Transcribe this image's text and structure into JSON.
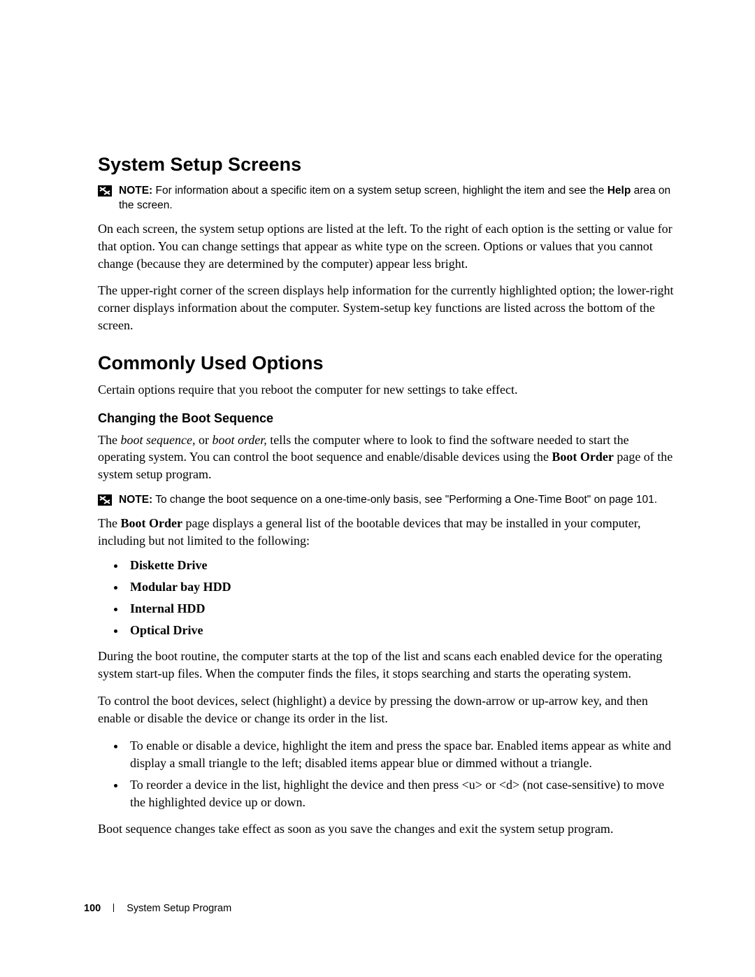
{
  "heading1": "System Setup Screens",
  "note1_html": "<b>NOTE:</b> For information about a specific item on a system setup screen, highlight the item and see the <b>Help</b> area on the screen.",
  "para1": "On each screen, the system setup options are listed at the left. To the right of each option is the setting or value for that option. You can change settings that appear as white type on the screen. Options or values that you cannot change (because they are determined by the computer) appear less bright.",
  "para2": "The upper-right corner of the screen displays help information for the currently highlighted option; the lower-right corner displays information about the computer. System-setup key functions are listed across the bottom of the screen.",
  "heading2": "Commonly Used Options",
  "para3": "Certain options require that you reboot the computer for new settings to take effect.",
  "heading3": "Changing the Boot Sequence",
  "para4_html": "The <span class=\"ital\">boot sequence,</span> or <span class=\"ital\">boot order,</span> tells the computer where to look to find the software needed to start the operating system. You can control the boot sequence and enable/disable devices using the <span class=\"bold\">Boot Order</span> page of the system setup program.",
  "note2_html": "<b>NOTE:</b> To change the boot sequence on a one-time-only basis, see \"Performing a One-Time Boot\" on page 101.",
  "para5_html": "The <span class=\"bold\">Boot Order</span> page displays a general list of the bootable devices that may be installed in your computer, including but not limited to the following:",
  "boot_devices": [
    "Diskette Drive",
    "Modular bay HDD",
    "Internal HDD",
    "Optical Drive"
  ],
  "para6": "During the boot routine, the computer starts at the top of the list and scans each enabled device for the operating system start-up files. When the computer finds the files, it stops searching and starts the operating system.",
  "para7": "To control the boot devices, select (highlight) a device by pressing the down-arrow or up-arrow key, and then enable or disable the device or change its order in the list.",
  "instructions": [
    "To enable or disable a device, highlight the item and press the space bar. Enabled items appear as white and display a small triangle to the left; disabled items appear blue or dimmed without a triangle.",
    "To reorder a device in the list, highlight the device and then press <u> or <d> (not case-sensitive) to move the highlighted device up or down."
  ],
  "para8": "Boot sequence changes take effect as soon as you save the changes and exit the system setup program.",
  "footer_page": "100",
  "footer_title": "System Setup Program",
  "note_icon_bg": "#000000",
  "note_icon_stroke": "#ffffff"
}
